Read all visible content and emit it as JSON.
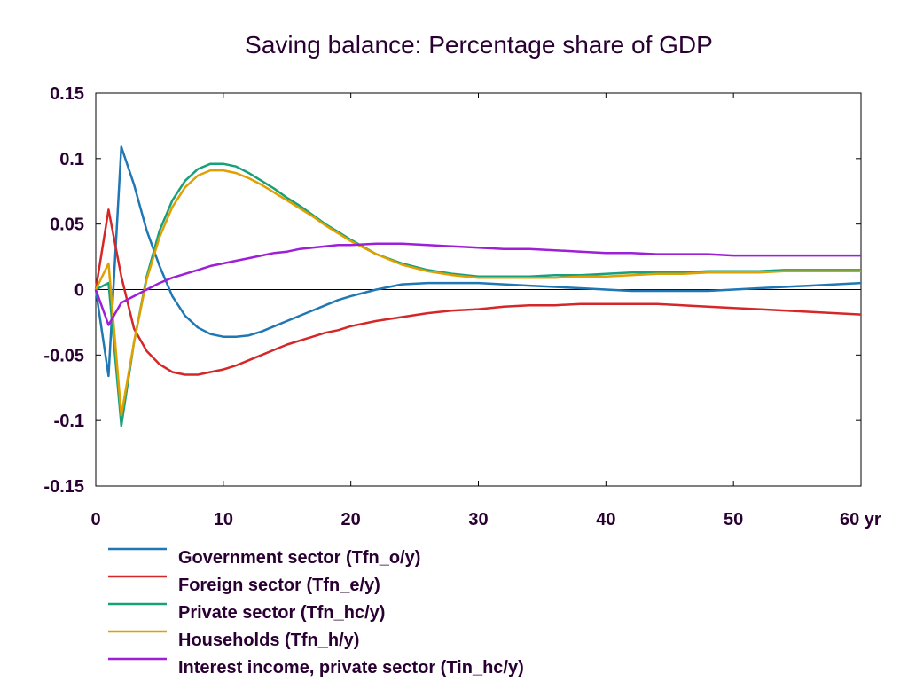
{
  "chart_data": {
    "type": "line",
    "title": "Saving balance: Percentage share of GDP",
    "xlabel": "",
    "ylabel": "",
    "x_unit": "yr",
    "xlim": [
      0,
      60
    ],
    "ylim": [
      -0.15,
      0.15
    ],
    "x_ticks": [
      0,
      10,
      20,
      30,
      40,
      50,
      60
    ],
    "x_tick_labels": [
      "0",
      "10",
      "20",
      "30",
      "40",
      "50",
      "60 yr"
    ],
    "y_ticks": [
      0.15,
      0.1,
      0.05,
      0,
      -0.05,
      -0.1,
      -0.15
    ],
    "y_tick_labels": [
      "0.15",
      "0.1",
      "0.05",
      "0",
      "-0.05",
      "-0.1",
      "-0.15"
    ],
    "grid": false,
    "zero_line": true,
    "legend_position": "bottom",
    "series": [
      {
        "name": "Government sector (Tfn_o/y)",
        "color": "#1f77b4",
        "points": [
          [
            0,
            0
          ],
          [
            1,
            -0.066
          ],
          [
            2,
            0.109
          ],
          [
            3,
            0.08
          ],
          [
            4,
            0.045
          ],
          [
            5,
            0.018
          ],
          [
            6,
            -0.005
          ],
          [
            7,
            -0.02
          ],
          [
            8,
            -0.029
          ],
          [
            9,
            -0.034
          ],
          [
            10,
            -0.036
          ],
          [
            11,
            -0.036
          ],
          [
            12,
            -0.035
          ],
          [
            13,
            -0.032
          ],
          [
            14,
            -0.028
          ],
          [
            15,
            -0.024
          ],
          [
            16,
            -0.02
          ],
          [
            17,
            -0.016
          ],
          [
            18,
            -0.012
          ],
          [
            19,
            -0.008
          ],
          [
            20,
            -0.005
          ],
          [
            22,
            0.0
          ],
          [
            24,
            0.004
          ],
          [
            26,
            0.005
          ],
          [
            28,
            0.005
          ],
          [
            30,
            0.005
          ],
          [
            32,
            0.004
          ],
          [
            34,
            0.003
          ],
          [
            36,
            0.002
          ],
          [
            38,
            0.001
          ],
          [
            40,
            0.0
          ],
          [
            42,
            -0.001
          ],
          [
            44,
            -0.001
          ],
          [
            46,
            -0.001
          ],
          [
            48,
            -0.001
          ],
          [
            50,
            0.0
          ],
          [
            52,
            0.001
          ],
          [
            54,
            0.002
          ],
          [
            56,
            0.003
          ],
          [
            58,
            0.004
          ],
          [
            60,
            0.005
          ]
        ]
      },
      {
        "name": "Foreign sector (Tfn_e/y)",
        "color": "#d62728",
        "points": [
          [
            0,
            0
          ],
          [
            1,
            0.061
          ],
          [
            2,
            0.01
          ],
          [
            3,
            -0.03
          ],
          [
            4,
            -0.047
          ],
          [
            5,
            -0.057
          ],
          [
            6,
            -0.063
          ],
          [
            7,
            -0.065
          ],
          [
            8,
            -0.065
          ],
          [
            9,
            -0.063
          ],
          [
            10,
            -0.061
          ],
          [
            11,
            -0.058
          ],
          [
            12,
            -0.054
          ],
          [
            13,
            -0.05
          ],
          [
            14,
            -0.046
          ],
          [
            15,
            -0.042
          ],
          [
            16,
            -0.039
          ],
          [
            17,
            -0.036
          ],
          [
            18,
            -0.033
          ],
          [
            19,
            -0.031
          ],
          [
            20,
            -0.028
          ],
          [
            22,
            -0.024
          ],
          [
            24,
            -0.021
          ],
          [
            26,
            -0.018
          ],
          [
            28,
            -0.016
          ],
          [
            30,
            -0.015
          ],
          [
            32,
            -0.013
          ],
          [
            34,
            -0.012
          ],
          [
            36,
            -0.012
          ],
          [
            38,
            -0.011
          ],
          [
            40,
            -0.011
          ],
          [
            42,
            -0.011
          ],
          [
            44,
            -0.011
          ],
          [
            46,
            -0.012
          ],
          [
            48,
            -0.013
          ],
          [
            50,
            -0.014
          ],
          [
            52,
            -0.015
          ],
          [
            54,
            -0.016
          ],
          [
            56,
            -0.017
          ],
          [
            58,
            -0.018
          ],
          [
            60,
            -0.019
          ]
        ]
      },
      {
        "name": "Private sector (Tfn_hc/y)",
        "color": "#17a07a",
        "points": [
          [
            0,
            0
          ],
          [
            1,
            0.005
          ],
          [
            2,
            -0.104
          ],
          [
            3,
            -0.04
          ],
          [
            4,
            0.01
          ],
          [
            5,
            0.045
          ],
          [
            6,
            0.068
          ],
          [
            7,
            0.083
          ],
          [
            8,
            0.092
          ],
          [
            9,
            0.096
          ],
          [
            10,
            0.096
          ],
          [
            11,
            0.094
          ],
          [
            12,
            0.089
          ],
          [
            13,
            0.083
          ],
          [
            14,
            0.077
          ],
          [
            15,
            0.07
          ],
          [
            16,
            0.064
          ],
          [
            17,
            0.057
          ],
          [
            18,
            0.05
          ],
          [
            19,
            0.044
          ],
          [
            20,
            0.038
          ],
          [
            22,
            0.027
          ],
          [
            24,
            0.02
          ],
          [
            26,
            0.015
          ],
          [
            28,
            0.012
          ],
          [
            30,
            0.01
          ],
          [
            32,
            0.01
          ],
          [
            34,
            0.01
          ],
          [
            36,
            0.011
          ],
          [
            38,
            0.011
          ],
          [
            40,
            0.012
          ],
          [
            42,
            0.013
          ],
          [
            44,
            0.013
          ],
          [
            46,
            0.013
          ],
          [
            48,
            0.014
          ],
          [
            50,
            0.014
          ],
          [
            52,
            0.014
          ],
          [
            54,
            0.015
          ],
          [
            56,
            0.015
          ],
          [
            58,
            0.015
          ],
          [
            60,
            0.015
          ]
        ]
      },
      {
        "name": "Households (Tfn_h/y)",
        "color": "#e0a000",
        "points": [
          [
            0,
            0
          ],
          [
            1,
            0.02
          ],
          [
            2,
            -0.096
          ],
          [
            3,
            -0.04
          ],
          [
            4,
            0.008
          ],
          [
            5,
            0.04
          ],
          [
            6,
            0.063
          ],
          [
            7,
            0.078
          ],
          [
            8,
            0.087
          ],
          [
            9,
            0.091
          ],
          [
            10,
            0.091
          ],
          [
            11,
            0.089
          ],
          [
            12,
            0.085
          ],
          [
            13,
            0.08
          ],
          [
            14,
            0.074
          ],
          [
            15,
            0.068
          ],
          [
            16,
            0.062
          ],
          [
            17,
            0.056
          ],
          [
            18,
            0.049
          ],
          [
            19,
            0.043
          ],
          [
            20,
            0.037
          ],
          [
            22,
            0.027
          ],
          [
            24,
            0.019
          ],
          [
            26,
            0.014
          ],
          [
            28,
            0.011
          ],
          [
            30,
            0.009
          ],
          [
            32,
            0.009
          ],
          [
            34,
            0.009
          ],
          [
            36,
            0.009
          ],
          [
            38,
            0.01
          ],
          [
            40,
            0.01
          ],
          [
            42,
            0.011
          ],
          [
            44,
            0.012
          ],
          [
            46,
            0.012
          ],
          [
            48,
            0.013
          ],
          [
            50,
            0.013
          ],
          [
            52,
            0.013
          ],
          [
            54,
            0.014
          ],
          [
            56,
            0.014
          ],
          [
            58,
            0.014
          ],
          [
            60,
            0.014
          ]
        ]
      },
      {
        "name": "Interest income, private sector (Tin_hc/y)",
        "color": "#9d1fd6",
        "points": [
          [
            0,
            0
          ],
          [
            1,
            -0.027
          ],
          [
            2,
            -0.01
          ],
          [
            3,
            -0.005
          ],
          [
            4,
            0.0
          ],
          [
            5,
            0.005
          ],
          [
            6,
            0.009
          ],
          [
            7,
            0.012
          ],
          [
            8,
            0.015
          ],
          [
            9,
            0.018
          ],
          [
            10,
            0.02
          ],
          [
            11,
            0.022
          ],
          [
            12,
            0.024
          ],
          [
            13,
            0.026
          ],
          [
            14,
            0.028
          ],
          [
            15,
            0.029
          ],
          [
            16,
            0.031
          ],
          [
            17,
            0.032
          ],
          [
            18,
            0.033
          ],
          [
            19,
            0.034
          ],
          [
            20,
            0.034
          ],
          [
            22,
            0.035
          ],
          [
            24,
            0.035
          ],
          [
            26,
            0.034
          ],
          [
            28,
            0.033
          ],
          [
            30,
            0.032
          ],
          [
            32,
            0.031
          ],
          [
            34,
            0.031
          ],
          [
            36,
            0.03
          ],
          [
            38,
            0.029
          ],
          [
            40,
            0.028
          ],
          [
            42,
            0.028
          ],
          [
            44,
            0.027
          ],
          [
            46,
            0.027
          ],
          [
            48,
            0.027
          ],
          [
            50,
            0.026
          ],
          [
            52,
            0.026
          ],
          [
            54,
            0.026
          ],
          [
            56,
            0.026
          ],
          [
            58,
            0.026
          ],
          [
            60,
            0.026
          ]
        ]
      }
    ]
  }
}
